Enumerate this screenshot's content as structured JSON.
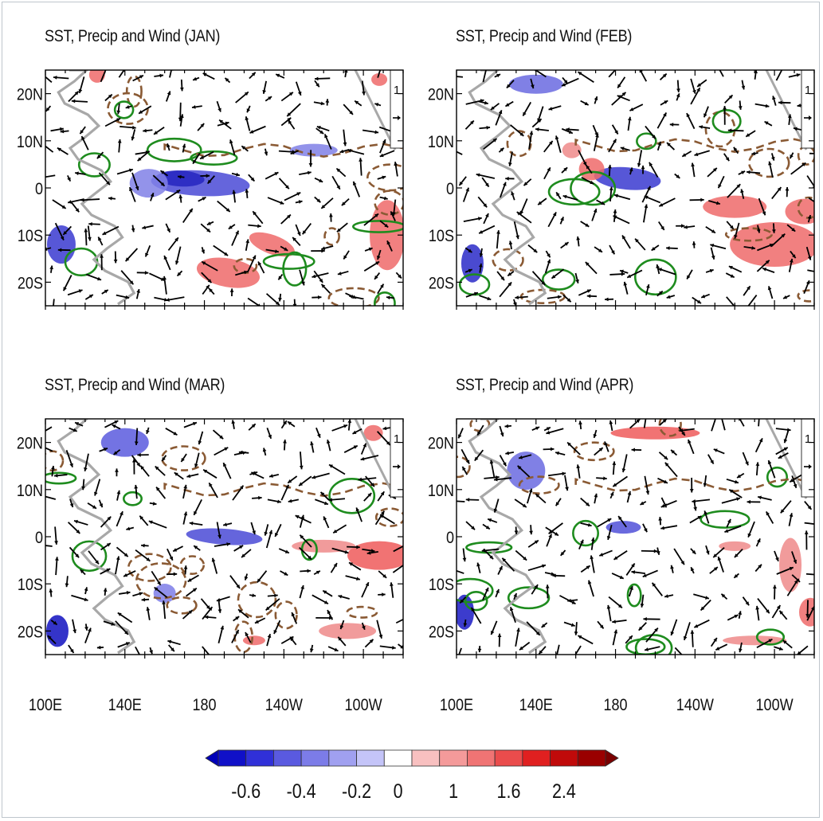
{
  "panels": [
    {
      "id": "jan",
      "title": "SST, Precip and Wind (JAN)"
    },
    {
      "id": "feb",
      "title": "SST, Precip and Wind (FEB)"
    },
    {
      "id": "mar",
      "title": "SST, Precip and Wind (MAR)"
    },
    {
      "id": "apr",
      "title": "SST, Precip and Wind (APR)"
    }
  ],
  "axes": {
    "lat_ticks": [
      "20N",
      "10N",
      "0",
      "10S",
      "20S"
    ],
    "lon_ticks": [
      "100E",
      "140E",
      "180",
      "140W",
      "100W"
    ]
  },
  "reference_vector": {
    "label": "1"
  },
  "colorbar": {
    "labels": [
      "-0.6",
      "-0.4",
      "-0.2",
      "0",
      "1",
      "1.6",
      "2.4"
    ],
    "colors": [
      "#1010c8",
      "#3030d8",
      "#5a5ae0",
      "#7c7ce8",
      "#a0a0f0",
      "#c4c4f8",
      "#ffffff",
      "#f8c0c0",
      "#f49a9a",
      "#f07474",
      "#ea4c4c",
      "#e02020",
      "#c00a0a",
      "#9a0000"
    ]
  },
  "colors": {
    "sst_positive": "#ee5a5a",
    "sst_negative": "#4a4ad6",
    "precip_positive_contour": "#1e8c1e",
    "precip_negative_contour": "#8a5a34",
    "coastline": "#a8a8a8",
    "wind_vector": "#000000"
  }
}
